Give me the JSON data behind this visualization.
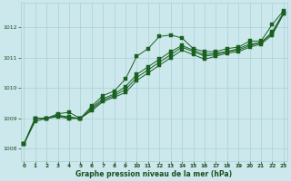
{
  "xlabel": "Graphe pression niveau de la mer (hPa)",
  "bg_color": "#cce8ec",
  "grid_color": "#a8d0d4",
  "line_color": "#1a6020",
  "text_color": "#1a5020",
  "ylim": [
    1007.6,
    1012.8
  ],
  "xlim": [
    -0.3,
    23.3
  ],
  "yticks": [
    1008,
    1009,
    1010,
    1011,
    1012
  ],
  "xticks": [
    0,
    1,
    2,
    3,
    4,
    5,
    6,
    7,
    8,
    9,
    10,
    11,
    12,
    13,
    14,
    15,
    16,
    17,
    18,
    19,
    20,
    21,
    22,
    23
  ],
  "series1": [
    1008.15,
    1009.0,
    1009.0,
    1009.15,
    1009.2,
    1009.0,
    1009.4,
    1009.75,
    1009.9,
    1010.3,
    1011.05,
    1011.3,
    1011.7,
    1011.75,
    1011.65,
    1011.3,
    1011.2,
    1011.2,
    1011.3,
    1011.35,
    1011.55,
    1011.55,
    1012.1,
    1012.55
  ],
  "series2": [
    1008.15,
    1009.0,
    1009.0,
    1009.1,
    1009.0,
    1009.0,
    1009.35,
    1009.65,
    1009.8,
    1010.05,
    1010.45,
    1010.7,
    1010.95,
    1011.2,
    1011.4,
    1011.25,
    1011.1,
    1011.15,
    1011.2,
    1011.3,
    1011.45,
    1011.5,
    1011.85,
    1012.5
  ],
  "series3": [
    1008.15,
    1009.0,
    1009.0,
    1009.1,
    1009.05,
    1009.0,
    1009.3,
    1009.6,
    1009.75,
    1009.95,
    1010.35,
    1010.6,
    1010.85,
    1011.1,
    1011.35,
    1011.2,
    1011.05,
    1011.1,
    1011.2,
    1011.25,
    1011.4,
    1011.5,
    1011.8,
    1012.45
  ],
  "series4": [
    1008.15,
    1008.9,
    1009.0,
    1009.05,
    1009.0,
    1009.0,
    1009.25,
    1009.55,
    1009.7,
    1009.85,
    1010.25,
    1010.5,
    1010.75,
    1011.0,
    1011.25,
    1011.1,
    1010.95,
    1011.05,
    1011.15,
    1011.2,
    1011.35,
    1011.45,
    1011.75,
    1012.45
  ]
}
